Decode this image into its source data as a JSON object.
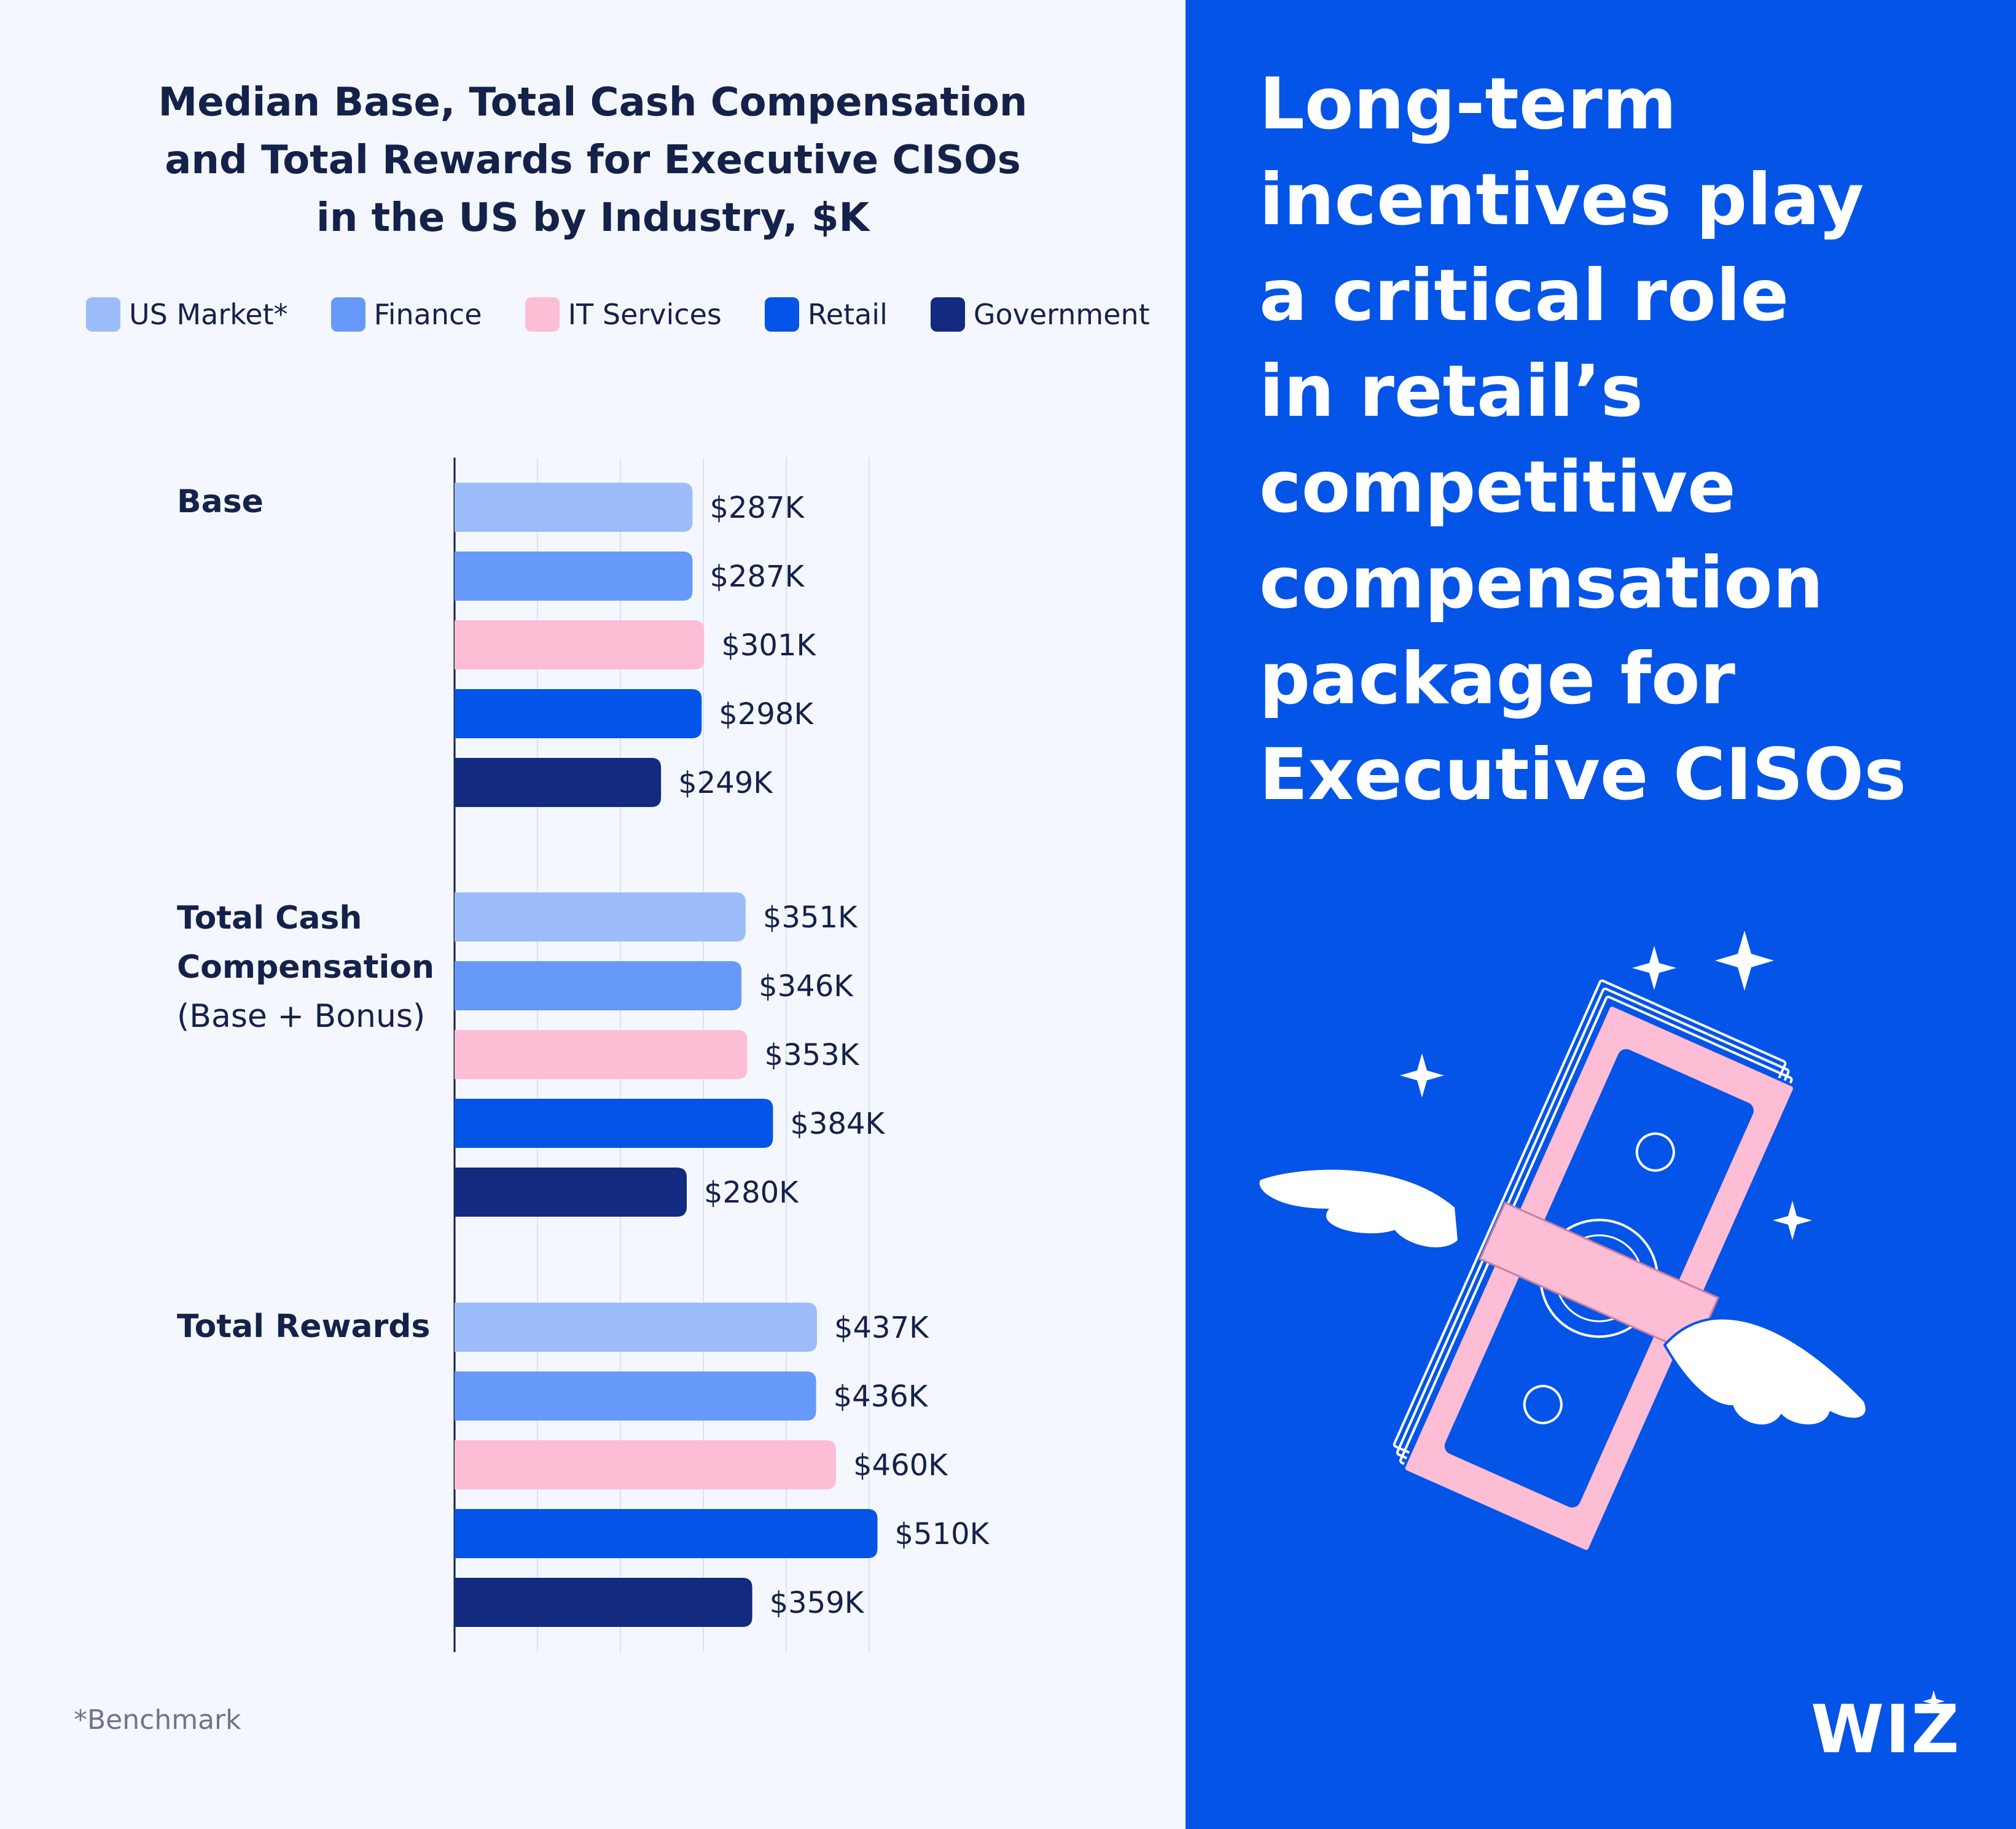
{
  "chart": {
    "title": "Median Base, Total Cash Compensation\nand Total Rewards for Executive CISOs\nin the US by Industry, $K",
    "footnote": "*Benchmark"
  },
  "chart_data": {
    "type": "bar",
    "orientation": "horizontal",
    "title": "Median Base, Total Cash Compensation and Total Rewards for Executive CISOs in the US by Industry, $K",
    "categories": [
      "Base",
      "Total Cash Compensation (Base + Bonus)",
      "Total Rewards"
    ],
    "category_labels": [
      {
        "bold": "Base",
        "sub": ""
      },
      {
        "bold": "Total Cash\nCompensation",
        "sub": "(Base + Bonus)"
      },
      {
        "bold": "Total Rewards",
        "sub": ""
      }
    ],
    "series": [
      {
        "name": "US Market*",
        "color": "#9cbcfb",
        "values": [
          287,
          351,
          437
        ],
        "labels": [
          "$287K",
          "$351K",
          "$437K"
        ]
      },
      {
        "name": "Finance",
        "color": "#6699f9",
        "values": [
          287,
          346,
          436
        ],
        "labels": [
          "$287K",
          "$346K",
          "$436K"
        ]
      },
      {
        "name": "IT Services",
        "color": "#fdbdd5",
        "values": [
          301,
          353,
          460
        ],
        "labels": [
          "$301K",
          "$353K",
          "$460K"
        ]
      },
      {
        "name": "Retail",
        "color": "#0454e8",
        "values": [
          298,
          384,
          510
        ],
        "labels": [
          "$298K",
          "$384K",
          "$510K"
        ]
      },
      {
        "name": "Government",
        "color": "#122a80",
        "values": [
          249,
          280,
          359
        ],
        "labels": [
          "$249K",
          "$280K",
          "$359K"
        ]
      }
    ],
    "xlim": [
      0,
      500
    ],
    "grid": true,
    "legend": "top"
  },
  "headline": "Long-term\nincentives play\na critical role\nin retail’s\ncompetitive\ncompensation\npackage for\nExecutive CISOs",
  "logo": {
    "text": "WIZ"
  },
  "colors": {
    "panel_blue": "#0454e8",
    "text_dark": "#14214a",
    "pink": "#fdbdd5"
  }
}
